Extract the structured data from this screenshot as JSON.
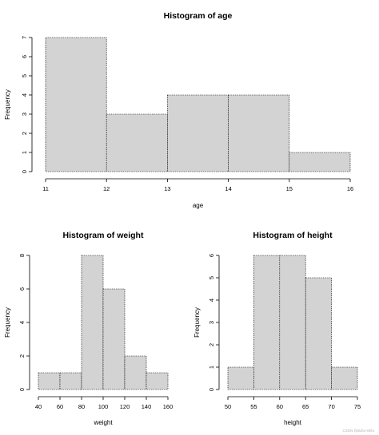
{
  "chart_data": [
    {
      "id": "age",
      "type": "bar",
      "title": "Histogram of age",
      "xlabel": "age",
      "ylabel": "Frequency",
      "breaks": [
        11,
        12,
        13,
        14,
        15,
        16
      ],
      "values": [
        7,
        3,
        4,
        4,
        1
      ],
      "xticks": [
        11,
        12,
        13,
        14,
        15,
        16
      ],
      "yticks": [
        0,
        1,
        2,
        3,
        4,
        5,
        6,
        7
      ],
      "xlim": [
        11,
        16
      ],
      "ylim": [
        0,
        7
      ],
      "grid": false
    },
    {
      "id": "weight",
      "type": "bar",
      "title": "Histogram of weight",
      "xlabel": "weight",
      "ylabel": "Frequency",
      "breaks": [
        40,
        60,
        80,
        100,
        120,
        140,
        160
      ],
      "values": [
        1,
        1,
        8,
        6,
        2,
        1
      ],
      "xticks": [
        40,
        60,
        80,
        100,
        120,
        140,
        160
      ],
      "yticks": [
        0,
        2,
        4,
        6,
        8
      ],
      "xlim": [
        40,
        160
      ],
      "ylim": [
        0,
        8
      ],
      "grid": false
    },
    {
      "id": "height",
      "type": "bar",
      "title": "Histogram of height",
      "xlabel": "height",
      "ylabel": "Frequency",
      "breaks": [
        50,
        55,
        60,
        65,
        70,
        75
      ],
      "values": [
        1,
        6,
        6,
        5,
        1
      ],
      "xticks": [
        50,
        55,
        60,
        65,
        70,
        75
      ],
      "yticks": [
        0,
        1,
        2,
        3,
        4,
        5,
        6
      ],
      "xlim": [
        50,
        75
      ],
      "ylim": [
        0,
        6
      ],
      "grid": false
    }
  ],
  "watermark": "CSDN @duhu-shifu"
}
